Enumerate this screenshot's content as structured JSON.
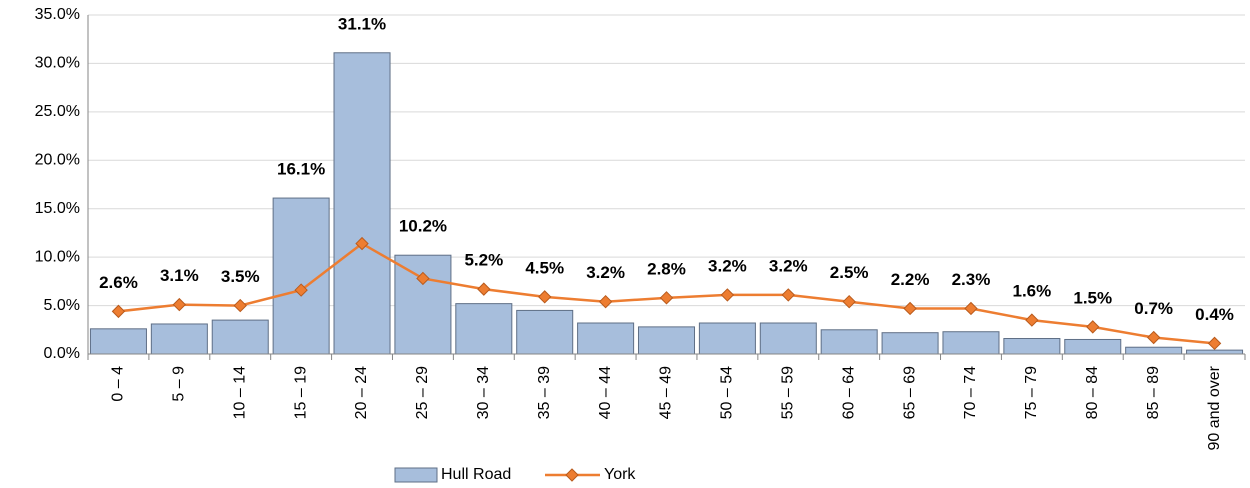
{
  "chart_data": {
    "type": "bar_line",
    "categories": [
      "0 – 4",
      "5 – 9",
      "10 – 14",
      "15 – 19",
      "20 – 24",
      "25 – 29",
      "30 – 34",
      "35 – 39",
      "40 – 44",
      "45 – 49",
      "50 – 54",
      "55 – 59",
      "60 – 64",
      "65 – 69",
      "70 – 74",
      "75 – 79",
      "80 – 84",
      "85 – 89",
      "90 and over"
    ],
    "series": [
      {
        "name": "Hull Road",
        "type": "bar",
        "color": "#a7bedc",
        "values": [
          2.6,
          3.1,
          3.5,
          16.1,
          31.1,
          10.2,
          5.2,
          4.5,
          3.2,
          2.8,
          3.2,
          3.2,
          2.5,
          2.2,
          2.3,
          1.6,
          1.5,
          0.7,
          0.4
        ],
        "value_labels": [
          "2.6%",
          "3.1%",
          "3.5%",
          "16.1%",
          "31.1%",
          "10.2%",
          "5.2%",
          "4.5%",
          "3.2%",
          "2.8%",
          "3.2%",
          "3.2%",
          "2.5%",
          "2.2%",
          "2.3%",
          "1.6%",
          "1.5%",
          "0.7%",
          "0.4%"
        ]
      },
      {
        "name": "York",
        "type": "line",
        "color": "#ed7d31",
        "values": [
          4.4,
          5.1,
          5.0,
          6.6,
          11.4,
          7.8,
          6.7,
          5.9,
          5.4,
          5.8,
          6.1,
          6.1,
          5.4,
          4.7,
          4.7,
          3.5,
          2.8,
          1.7,
          1.1
        ]
      }
    ],
    "ylim": [
      0,
      35
    ],
    "yticks": [
      {
        "value": 0,
        "label": "0.0%"
      },
      {
        "value": 5,
        "label": "5.0%"
      },
      {
        "value": 10,
        "label": "10.0%"
      },
      {
        "value": 15,
        "label": "15.0%"
      },
      {
        "value": 20,
        "label": "20.0%"
      },
      {
        "value": 25,
        "label": "25.0%"
      },
      {
        "value": 30,
        "label": "30.0%"
      },
      {
        "value": 35,
        "label": "35.0%"
      }
    ],
    "grid": true
  }
}
